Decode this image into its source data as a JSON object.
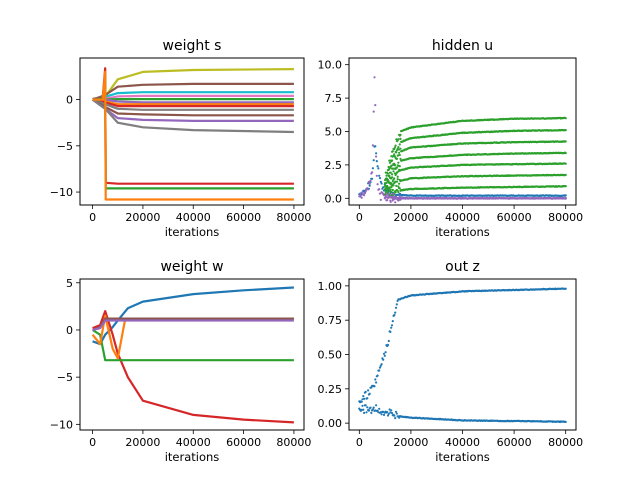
{
  "chart_data": [
    {
      "type": "line",
      "title": "weight s",
      "xlabel": "iterations",
      "ylabel": "",
      "xlim": [
        -5000,
        84000
      ],
      "ylim": [
        -11.4,
        4.5
      ],
      "xticks": [
        0,
        20000,
        40000,
        60000,
        80000
      ],
      "xtick_labels": [
        "0",
        "20000",
        "40000",
        "60000",
        "80000"
      ],
      "yticks": [
        -10,
        -5,
        0
      ],
      "ytick_labels": [
        "−10",
        "−5",
        "0"
      ],
      "grid": false,
      "series": [
        {
          "color": "#bcbd22",
          "x": [
            0,
            5000,
            10000,
            20000,
            40000,
            80000
          ],
          "y": [
            0.1,
            0.3,
            2.2,
            3.0,
            3.2,
            3.3
          ]
        },
        {
          "color": "#8c564b",
          "x": [
            0,
            5000,
            10000,
            20000,
            40000,
            80000
          ],
          "y": [
            0.0,
            0.5,
            1.4,
            1.6,
            1.7,
            1.7
          ]
        },
        {
          "color": "#17becf",
          "x": [
            0,
            5000,
            10000,
            20000,
            40000,
            80000
          ],
          "y": [
            0.0,
            0.3,
            0.7,
            0.8,
            0.8,
            0.8
          ]
        },
        {
          "color": "#e377c2",
          "x": [
            0,
            5000,
            10000,
            20000,
            40000,
            80000
          ],
          "y": [
            0.0,
            0.1,
            0.35,
            0.4,
            0.4,
            0.4
          ]
        },
        {
          "color": "#2ca02c",
          "x": [
            0,
            5000,
            10000,
            20000,
            40000,
            80000
          ],
          "y": [
            0.0,
            0.0,
            0.05,
            0.05,
            0.05,
            0.05
          ]
        },
        {
          "color": "#9467bd",
          "x": [
            0,
            5000,
            10000,
            20000,
            40000,
            80000
          ],
          "y": [
            0.1,
            0.0,
            -0.2,
            -0.3,
            -0.3,
            -0.3
          ]
        },
        {
          "color": "#ff7f0e",
          "x": [
            0,
            5000,
            10000,
            20000,
            40000,
            80000
          ],
          "y": [
            0.0,
            -0.2,
            -0.5,
            -0.5,
            -0.5,
            -0.5
          ]
        },
        {
          "color": "#d62728",
          "x": [
            0,
            5000,
            10000,
            20000,
            40000,
            80000
          ],
          "y": [
            0.0,
            -0.3,
            -0.7,
            -0.7,
            -0.7,
            -0.7
          ]
        },
        {
          "color": "#7f7f7f",
          "x": [
            0,
            5000,
            10000,
            20000,
            40000,
            80000
          ],
          "y": [
            0.0,
            -0.5,
            -1.0,
            -1.1,
            -1.1,
            -1.1
          ]
        },
        {
          "color": "#8c564b",
          "x": [
            0,
            5000,
            10000,
            20000,
            40000,
            80000
          ],
          "y": [
            0.0,
            -0.8,
            -1.5,
            -1.6,
            -1.7,
            -1.7
          ]
        },
        {
          "color": "#9467bd",
          "x": [
            0,
            5000,
            10000,
            20000,
            40000,
            80000
          ],
          "y": [
            0.0,
            -1.0,
            -2.0,
            -2.2,
            -2.3,
            -2.3
          ]
        },
        {
          "color": "#7f7f7f",
          "x": [
            0,
            5000,
            10000,
            20000,
            40000,
            80000
          ],
          "y": [
            0.0,
            -1.0,
            -2.5,
            -3.0,
            -3.3,
            -3.5
          ]
        },
        {
          "color": "#d62728",
          "x": [
            0,
            4000,
            5000,
            5200,
            10000,
            20000,
            40000,
            80000
          ],
          "y": [
            0.0,
            0.2,
            3.4,
            -9.0,
            -9.1,
            -9.1,
            -9.1,
            -9.1
          ]
        },
        {
          "color": "#2ca02c",
          "x": [
            0,
            4000,
            5000,
            5200,
            10000,
            20000,
            40000,
            80000
          ],
          "y": [
            0.0,
            0.1,
            2.5,
            -9.6,
            -9.6,
            -9.6,
            -9.6,
            -9.6
          ]
        },
        {
          "color": "#ff7f0e",
          "x": [
            0,
            4000,
            5000,
            5200,
            10000,
            20000,
            40000,
            80000
          ],
          "y": [
            0.0,
            0.0,
            3.0,
            -10.8,
            -10.8,
            -10.8,
            -10.8,
            -10.8
          ]
        }
      ]
    },
    {
      "type": "scatter",
      "title": "hidden u",
      "xlabel": "iterations",
      "ylabel": "",
      "xlim": [
        -4000,
        84000
      ],
      "ylim": [
        -0.5,
        10.5
      ],
      "xticks": [
        0,
        20000,
        40000,
        60000,
        80000
      ],
      "xtick_labels": [
        "0",
        "20000",
        "40000",
        "60000",
        "80000"
      ],
      "yticks": [
        0,
        2.5,
        5,
        7.5,
        10
      ],
      "ytick_labels": [
        "0.0",
        "2.5",
        "5.0",
        "7.5",
        "10.0"
      ],
      "grid": false,
      "series": [
        {
          "color": "#1f77b4",
          "x": [
            0,
            2000,
            4000,
            5000,
            6000,
            7000,
            8000,
            9000,
            12000,
            20000,
            40000,
            80000
          ],
          "y": [
            0.3,
            0.6,
            1.0,
            1.6,
            4.2,
            2.5,
            1.5,
            0.8,
            0.3,
            0.2,
            0.2,
            0.2
          ]
        },
        {
          "color": "#9467bd",
          "x": [
            0,
            2000,
            4000,
            5000,
            6000,
            6500,
            7000,
            8000,
            10000,
            20000,
            40000,
            80000
          ],
          "y": [
            0.2,
            0.5,
            1.0,
            2.0,
            9.8,
            3.0,
            1.0,
            0.3,
            0.1,
            0.0,
            0.0,
            0.0
          ]
        },
        {
          "color": "#2ca02c",
          "x": [
            10000,
            13000,
            16000,
            20000,
            40000,
            60000,
            80000
          ],
          "y": [
            1.5,
            3.5,
            5.0,
            5.3,
            5.8,
            5.95,
            6.0
          ]
        },
        {
          "color": "#2ca02c",
          "x": [
            10000,
            13000,
            16000,
            20000,
            40000,
            60000,
            80000
          ],
          "y": [
            1.2,
            3.0,
            4.2,
            4.5,
            4.9,
            5.05,
            5.1
          ]
        },
        {
          "color": "#2ca02c",
          "x": [
            10000,
            13000,
            16000,
            20000,
            40000,
            60000,
            80000
          ],
          "y": [
            1.0,
            2.5,
            3.5,
            3.8,
            4.1,
            4.2,
            4.25
          ]
        },
        {
          "color": "#2ca02c",
          "x": [
            10000,
            13000,
            16000,
            20000,
            40000,
            60000,
            80000
          ],
          "y": [
            0.8,
            2.0,
            2.8,
            3.0,
            3.25,
            3.35,
            3.4
          ]
        },
        {
          "color": "#2ca02c",
          "x": [
            10000,
            13000,
            16000,
            20000,
            40000,
            60000,
            80000
          ],
          "y": [
            0.6,
            1.5,
            2.1,
            2.3,
            2.5,
            2.55,
            2.6
          ]
        },
        {
          "color": "#2ca02c",
          "x": [
            10000,
            13000,
            16000,
            20000,
            40000,
            60000,
            80000
          ],
          "y": [
            0.5,
            1.0,
            1.3,
            1.5,
            1.65,
            1.7,
            1.75
          ]
        },
        {
          "color": "#2ca02c",
          "x": [
            10000,
            13000,
            16000,
            20000,
            40000,
            60000,
            80000
          ],
          "y": [
            0.3,
            0.5,
            0.6,
            0.7,
            0.8,
            0.85,
            0.9
          ]
        },
        {
          "color": "#9467bd",
          "x": [
            10000,
            20000,
            40000,
            80000
          ],
          "y": [
            0.0,
            0.0,
            0.0,
            0.0
          ]
        }
      ]
    },
    {
      "type": "line",
      "title": "weight w",
      "xlabel": "iterations",
      "ylabel": "",
      "xlim": [
        -5000,
        84000
      ],
      "ylim": [
        -10.6,
        5.4
      ],
      "xticks": [
        0,
        20000,
        40000,
        60000,
        80000
      ],
      "xtick_labels": [
        "0",
        "20000",
        "40000",
        "60000",
        "80000"
      ],
      "yticks": [
        -10,
        -5,
        0,
        5
      ],
      "ytick_labels": [
        "−10",
        "−5",
        "0",
        "5"
      ],
      "grid": false,
      "series": [
        {
          "color": "#1f77b4",
          "x": [
            0,
            3000,
            5000,
            8000,
            10000,
            14000,
            20000,
            40000,
            60000,
            80000
          ],
          "y": [
            -1.2,
            -1.5,
            -0.5,
            0.3,
            1.0,
            2.3,
            3.0,
            3.8,
            4.2,
            4.5
          ]
        },
        {
          "color": "#d62728",
          "x": [
            0,
            3000,
            5000,
            8000,
            10000,
            14000,
            20000,
            40000,
            60000,
            80000
          ],
          "y": [
            0.2,
            0.5,
            2.0,
            -0.5,
            -2.5,
            -5.0,
            -7.5,
            -9.0,
            -9.5,
            -9.8
          ]
        },
        {
          "color": "#2ca02c",
          "x": [
            0,
            3000,
            5000,
            8000,
            20000,
            40000,
            80000
          ],
          "y": [
            0.0,
            -0.5,
            -3.2,
            -3.2,
            -3.2,
            -3.2,
            -3.2
          ]
        },
        {
          "color": "#ff7f0e",
          "x": [
            0,
            3000,
            5000,
            8000,
            10000,
            13000,
            20000,
            40000,
            80000
          ],
          "y": [
            -0.5,
            -1.5,
            1.5,
            -2.0,
            -3.0,
            1.2,
            1.2,
            1.2,
            1.2
          ]
        },
        {
          "color": "#8c564b",
          "x": [
            0,
            3000,
            5000,
            8000,
            20000,
            40000,
            80000
          ],
          "y": [
            0.0,
            0.3,
            1.2,
            1.2,
            1.2,
            1.2,
            1.2
          ]
        },
        {
          "color": "#9467bd",
          "x": [
            0,
            3000,
            5000,
            8000,
            20000,
            40000,
            80000
          ],
          "y": [
            0.0,
            0.2,
            1.0,
            1.0,
            1.0,
            1.0,
            1.0
          ]
        }
      ]
    },
    {
      "type": "scatter",
      "title": "out z",
      "xlabel": "iterations",
      "ylabel": "",
      "xlim": [
        -4000,
        84000
      ],
      "ylim": [
        -0.05,
        1.05
      ],
      "xticks": [
        0,
        20000,
        40000,
        60000,
        80000
      ],
      "xtick_labels": [
        "0",
        "20000",
        "40000",
        "60000",
        "80000"
      ],
      "yticks": [
        0,
        0.25,
        0.5,
        0.75,
        1
      ],
      "ytick_labels": [
        "0.00",
        "0.25",
        "0.50",
        "0.75",
        "1.00"
      ],
      "grid": false,
      "series": [
        {
          "color": "#1f77b4",
          "x": [
            0,
            5000,
            10000,
            15000,
            20000,
            40000,
            60000,
            80000
          ],
          "y": [
            0.15,
            0.25,
            0.5,
            0.9,
            0.93,
            0.96,
            0.97,
            0.98
          ]
        },
        {
          "color": "#1f77b4",
          "x": [
            0,
            5000,
            10000,
            15000,
            20000,
            40000,
            60000,
            80000
          ],
          "y": [
            0.1,
            0.1,
            0.08,
            0.05,
            0.04,
            0.02,
            0.015,
            0.01
          ]
        }
      ]
    }
  ]
}
